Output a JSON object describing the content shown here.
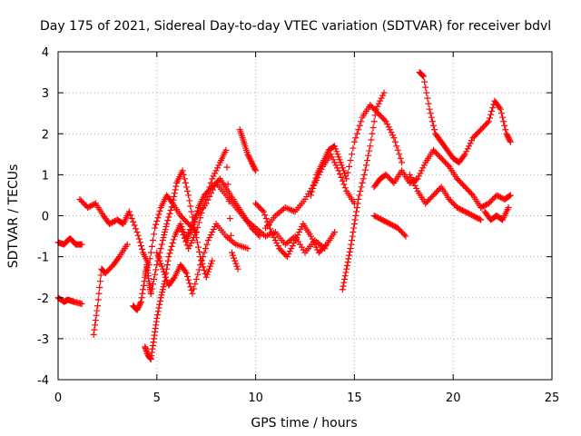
{
  "chart_data": {
    "type": "scatter",
    "title": "Day 175 of 2021, Sidereal Day-to-day VTEC variation (SDTVAR) for receiver bdvl",
    "xlabel": "GPS time / hours",
    "ylabel": "SDTVAR / TECUs",
    "xlim": [
      0,
      25
    ],
    "ylim": [
      -4,
      4
    ],
    "xticks": [
      0,
      5,
      10,
      15,
      20,
      25
    ],
    "yticks": [
      -4,
      -3,
      -2,
      -1,
      0,
      1,
      2,
      3,
      4
    ],
    "grid": true,
    "marker": "+",
    "color": "#ff0000",
    "series": [
      {
        "name": "s1",
        "x": [
          0.0,
          0.3,
          0.6,
          0.9,
          1.2
        ],
        "y": [
          -0.65,
          -0.7,
          -0.55,
          -0.7,
          -0.7
        ]
      },
      {
        "name": "s2",
        "x": [
          0.0,
          0.3,
          0.5,
          0.8,
          1.2
        ],
        "y": [
          -2.0,
          -2.1,
          -2.05,
          -2.1,
          -2.15
        ]
      },
      {
        "name": "s3",
        "x": [
          1.1,
          1.5,
          1.9,
          2.3,
          2.6,
          3.0,
          3.3,
          3.6,
          4.0,
          4.3,
          4.6,
          4.9,
          5.2,
          5.5,
          5.8,
          6.2,
          6.6,
          7.0
        ],
        "y": [
          0.4,
          0.2,
          0.3,
          0.0,
          -0.2,
          -0.1,
          -0.2,
          0.1,
          -0.4,
          -0.9,
          -1.2,
          -0.3,
          0.2,
          0.5,
          0.3,
          0.0,
          -0.2,
          -0.4
        ]
      },
      {
        "name": "s4",
        "x": [
          1.8,
          2.0,
          2.2,
          2.4,
          2.8,
          3.1,
          3.5
        ],
        "y": [
          -2.9,
          -2.2,
          -1.3,
          -1.4,
          -1.2,
          -1.0,
          -0.7
        ]
      },
      {
        "name": "s5",
        "x": [
          3.8,
          4.0,
          4.2,
          4.4,
          4.5,
          4.6,
          4.7
        ],
        "y": [
          -2.2,
          -2.3,
          -2.1,
          -1.5,
          -1.2,
          -1.6,
          -1.9
        ]
      },
      {
        "name": "s6",
        "x": [
          4.4,
          4.55,
          4.7,
          4.85,
          5.0,
          5.2,
          5.4,
          5.6,
          5.9,
          6.2,
          6.5,
          6.8,
          7.1,
          7.4,
          7.8,
          8.2,
          8.6,
          9.0,
          9.4,
          9.8,
          10.2
        ],
        "y": [
          -3.2,
          -3.4,
          -3.5,
          -3.0,
          -2.5,
          -2.0,
          -1.6,
          -1.0,
          -0.5,
          -0.2,
          -0.6,
          -0.3,
          0.2,
          0.5,
          0.7,
          0.9,
          0.6,
          0.3,
          0.0,
          -0.3,
          -0.5
        ]
      },
      {
        "name": "s7",
        "x": [
          4.7,
          5.0,
          5.3,
          5.5,
          5.8,
          6.0,
          6.3,
          6.6,
          6.9,
          7.2,
          7.5,
          7.8
        ],
        "y": [
          -1.9,
          -1.2,
          -0.6,
          -0.2,
          0.3,
          0.8,
          1.1,
          0.5,
          -0.3,
          -1.0,
          -1.5,
          -1.1
        ]
      },
      {
        "name": "s8",
        "x": [
          5.0,
          5.3,
          5.6,
          5.9,
          6.2,
          6.5,
          6.8,
          7.2,
          7.6,
          8.0,
          8.5,
          9.0,
          9.6
        ],
        "y": [
          -0.9,
          -1.3,
          -1.7,
          -1.5,
          -1.2,
          -1.4,
          -1.9,
          -1.2,
          -0.6,
          -0.2,
          -0.5,
          -0.7,
          -0.8
        ]
      },
      {
        "name": "s9",
        "x": [
          6.2,
          6.6,
          7.0,
          7.4,
          7.8,
          8.2,
          8.5,
          8.8,
          9.1
        ],
        "y": [
          -0.3,
          -0.8,
          -0.4,
          0.3,
          0.9,
          1.3,
          1.6,
          -0.9,
          -1.3
        ]
      },
      {
        "name": "s10",
        "x": [
          6.5,
          7.0,
          7.5,
          8.0,
          8.5,
          9.0,
          9.5,
          10.0,
          10.5,
          11.0,
          11.5,
          12.0,
          12.5,
          13.0,
          13.5
        ],
        "y": [
          -0.5,
          0.0,
          0.3,
          0.8,
          0.5,
          0.2,
          -0.1,
          -0.3,
          -0.5,
          -0.4,
          -0.7,
          -0.5,
          -0.9,
          -0.6,
          -0.8
        ]
      },
      {
        "name": "s11",
        "x": [
          9.2,
          9.4,
          9.6,
          9.8,
          10.0
        ],
        "y": [
          2.1,
          1.8,
          1.5,
          1.3,
          1.1
        ]
      },
      {
        "name": "s12",
        "x": [
          10.0,
          10.4,
          10.8,
          11.2,
          11.6,
          12.0,
          12.4,
          12.8,
          13.2,
          13.6,
          14.0
        ],
        "y": [
          0.3,
          0.1,
          -0.4,
          -0.8,
          -1.0,
          -0.6,
          -0.2,
          -0.5,
          -0.9,
          -0.7,
          -0.4
        ]
      },
      {
        "name": "s13",
        "x": [
          10.5,
          11.0,
          11.5,
          12.0,
          12.5,
          13.0,
          13.4,
          13.8,
          14.2,
          14.6,
          15.0
        ],
        "y": [
          -0.3,
          0.0,
          0.2,
          0.1,
          0.4,
          0.8,
          1.2,
          1.5,
          1.1,
          0.6,
          0.3
        ]
      },
      {
        "name": "s14",
        "x": [
          12.8,
          13.1,
          13.4,
          13.7,
          14.0,
          14.3,
          14.6,
          15.0,
          15.4,
          15.8,
          16.2,
          16.6,
          17.0,
          17.4
        ],
        "y": [
          0.5,
          1.0,
          1.3,
          1.6,
          1.7,
          1.3,
          0.9,
          1.8,
          2.4,
          2.7,
          2.5,
          2.3,
          1.9,
          1.3
        ]
      },
      {
        "name": "s15",
        "x": [
          14.4,
          14.6,
          14.8,
          15.0,
          15.2,
          15.5,
          15.8,
          16.1,
          16.5
        ],
        "y": [
          -1.8,
          -1.3,
          -0.8,
          -0.2,
          0.4,
          1.0,
          1.7,
          2.6,
          3.0
        ]
      },
      {
        "name": "s16",
        "x": [
          16.0,
          16.3,
          16.6,
          17.0,
          17.4,
          17.8,
          18.2,
          18.6,
          19.0,
          19.4,
          19.8,
          20.2
        ],
        "y": [
          0.7,
          0.9,
          1.0,
          0.8,
          1.1,
          0.8,
          0.9,
          1.3,
          1.6,
          1.4,
          1.2,
          0.9
        ]
      },
      {
        "name": "s17",
        "x": [
          16.0,
          16.4,
          16.8,
          17.2,
          17.6
        ],
        "y": [
          0.0,
          -0.1,
          -0.2,
          -0.3,
          -0.5
        ]
      },
      {
        "name": "s18",
        "x": [
          17.8,
          18.2,
          18.6,
          19.0,
          19.4,
          19.8,
          20.2,
          20.6,
          21.0,
          21.4
        ],
        "y": [
          1.0,
          0.6,
          0.3,
          0.5,
          0.7,
          0.4,
          0.2,
          0.1,
          0.0,
          -0.1
        ]
      },
      {
        "name": "s19",
        "x": [
          18.3,
          18.5,
          18.8,
          19.1,
          19.4,
          19.7,
          20.0,
          20.3,
          20.6,
          21.0,
          21.4,
          21.8,
          22.1,
          22.4,
          22.7,
          22.9
        ],
        "y": [
          3.5,
          3.4,
          2.6,
          2.0,
          1.8,
          1.6,
          1.4,
          1.3,
          1.5,
          1.9,
          2.1,
          2.3,
          2.8,
          2.6,
          2.0,
          1.8
        ]
      },
      {
        "name": "s20",
        "x": [
          20.2,
          20.6,
          21.0,
          21.4,
          21.8,
          22.2,
          22.6,
          22.9
        ],
        "y": [
          0.9,
          0.7,
          0.5,
          0.2,
          0.3,
          0.5,
          0.4,
          0.5
        ]
      },
      {
        "name": "s21",
        "x": [
          21.6,
          21.9,
          22.2,
          22.5,
          22.8
        ],
        "y": [
          0.1,
          -0.1,
          0.0,
          -0.1,
          0.2
        ]
      }
    ]
  }
}
